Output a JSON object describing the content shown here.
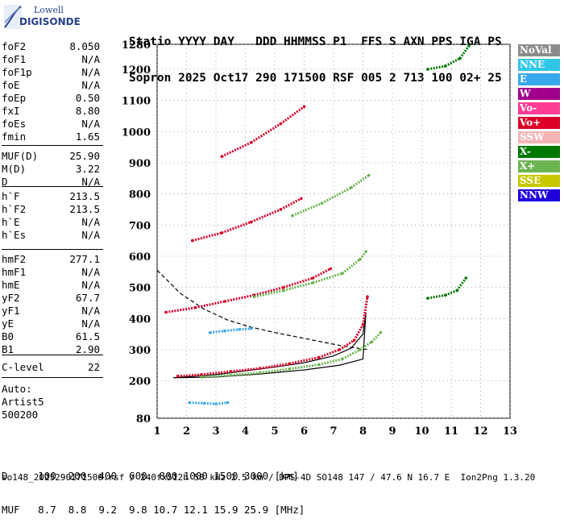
{
  "logo": {
    "top": "Lowell",
    "bottom": "DIGISONDE"
  },
  "header": {
    "line1": "Statio YYYY DAY   DDD HHMMSS P1  FFS S AXN PPS IGA PS",
    "line2": "Sopron 2025 Oct17 290 171500 RSF 005 2 713 100 02+ 25"
  },
  "params": [
    {
      "name": "foF2",
      "value": "8.050"
    },
    {
      "name": "foF1",
      "value": "N/A"
    },
    {
      "name": "foF1p",
      "value": "N/A"
    },
    {
      "name": "foE",
      "value": "N/A"
    },
    {
      "name": "foEp",
      "value": "0.50"
    },
    {
      "name": "fxI",
      "value": "8.80"
    },
    {
      "name": "foEs",
      "value": "N/A"
    },
    {
      "name": "fmin",
      "value": "1.65"
    },
    {
      "name": "MUF(D)",
      "value": "25.90"
    },
    {
      "name": "M(D)",
      "value": "3.22"
    },
    {
      "name": "D",
      "value": "N/A"
    },
    {
      "name": "h`F",
      "value": "213.5"
    },
    {
      "name": "h`F2",
      "value": "213.5"
    },
    {
      "name": "h`E",
      "value": "N/A"
    },
    {
      "name": "h`Es",
      "value": "N/A"
    },
    {
      "name": "hmF2",
      "value": "277.1"
    },
    {
      "name": "hmF1",
      "value": "N/A"
    },
    {
      "name": "hmE",
      "value": "N/A"
    },
    {
      "name": "yF2",
      "value": "67.7"
    },
    {
      "name": "yF1",
      "value": "N/A"
    },
    {
      "name": "yE",
      "value": "N/A"
    },
    {
      "name": "B0",
      "value": "61.5"
    },
    {
      "name": "B1",
      "value": "2.90"
    },
    {
      "name": "C-level",
      "value": "22"
    }
  ],
  "auto": {
    "label": "Auto:",
    "artist": "Artist5",
    "code": "500200"
  },
  "legend": [
    {
      "label": "NoVal",
      "color": "#8c8c8c"
    },
    {
      "label": "NNE",
      "color": "#2fc7e8"
    },
    {
      "label": "E",
      "color": "#38a8ec"
    },
    {
      "label": "W",
      "color": "#a0008c"
    },
    {
      "label": "Vo-",
      "color": "#ff3c96"
    },
    {
      "label": "Vo+",
      "color": "#dc0028"
    },
    {
      "label": "SSW",
      "color": "#f5b4b4"
    },
    {
      "label": "X-",
      "color": "#007800"
    },
    {
      "label": "X+",
      "color": "#6cb450"
    },
    {
      "label": "SSE",
      "color": "#c8c800"
    },
    {
      "label": "NNW",
      "color": "#1e00dc"
    }
  ],
  "footer": {
    "line1": "D     100  200  400  600  800 1000 1500 3000 [km]",
    "line2": "MUF   8.7  8.8  9.2  9.8 10.7 12.1 15.9 25.9 [MHz]",
    "line3": "so148_2025290171500.rsf / 240fx512h 50 kHz 2.5 km / DPS-4D SO148 147 / 47.6 N 16.7 E  Ion2Png 1.3.20"
  },
  "chart_data": {
    "type": "scatter",
    "title": "",
    "xlabel": "",
    "ylabel": "",
    "xlim": [
      1,
      13
    ],
    "ylim": [
      80,
      1280
    ],
    "xticks": [
      1,
      2,
      3,
      4,
      5,
      6,
      7,
      8,
      9,
      10,
      11,
      12,
      13
    ],
    "yticks": [
      80,
      200,
      300,
      400,
      500,
      600,
      700,
      800,
      900,
      1000,
      1100,
      1200,
      1280
    ],
    "series": [
      {
        "color": "#dc0028",
        "x": [
          1.7,
          2.5,
          3.5,
          4.5,
          5.5,
          6.5,
          7.2,
          7.7,
          8.0,
          8.15
        ],
        "y": [
          215,
          220,
          230,
          240,
          255,
          275,
          300,
          330,
          380,
          470
        ]
      },
      {
        "color": "#6cb450",
        "x": [
          2.5,
          3.5,
          4.5,
          5.5,
          6.5,
          7.3,
          7.9,
          8.3,
          8.6
        ],
        "y": [
          212,
          218,
          226,
          238,
          252,
          270,
          300,
          325,
          355
        ]
      },
      {
        "color": "#dc0028",
        "x": [
          1.3,
          2.3,
          3.3,
          4.3,
          5.3,
          6.3,
          6.9
        ],
        "y": [
          420,
          435,
          455,
          475,
          500,
          530,
          560
        ]
      },
      {
        "color": "#6cb450",
        "x": [
          4.3,
          5.3,
          6.3,
          7.3,
          7.9,
          8.1
        ],
        "y": [
          470,
          490,
          515,
          545,
          590,
          615
        ]
      },
      {
        "color": "#dc0028",
        "x": [
          2.2,
          3.2,
          4.2,
          5.2,
          5.9
        ],
        "y": [
          650,
          675,
          710,
          750,
          785
        ]
      },
      {
        "color": "#6cb450",
        "x": [
          5.6,
          6.6,
          7.6,
          8.2
        ],
        "y": [
          730,
          770,
          820,
          860
        ]
      },
      {
        "color": "#dc0028",
        "x": [
          3.2,
          4.2,
          5.2,
          6.0
        ],
        "y": [
          920,
          965,
          1025,
          1080
        ]
      },
      {
        "color": "#007800",
        "x": [
          10.2,
          10.8,
          11.2,
          11.5
        ],
        "y": [
          465,
          475,
          490,
          530
        ]
      },
      {
        "color": "#007800",
        "x": [
          10.2,
          10.8,
          11.3,
          11.6
        ],
        "y": [
          1200,
          1210,
          1235,
          1275
        ]
      },
      {
        "color": "#38a8ec",
        "x": [
          2.1,
          2.6,
          3.0,
          3.4
        ],
        "y": [
          130,
          128,
          126,
          130
        ]
      },
      {
        "color": "#38a8ec",
        "x": [
          2.8,
          3.3,
          3.8,
          4.2
        ],
        "y": [
          355,
          360,
          365,
          368
        ]
      }
    ],
    "curves": [
      {
        "style": "solid",
        "x": [
          1.55,
          3,
          4,
          5,
          6,
          7,
          7.6,
          8.0,
          8.1,
          8.0,
          7.2,
          6.0,
          4.5,
          3.0,
          1.55
        ],
        "y": [
          210,
          220,
          232,
          244,
          258,
          280,
          305,
          350,
          420,
          270,
          250,
          235,
          222,
          212,
          210
        ]
      },
      {
        "style": "dashed",
        "x": [
          1.0,
          1.8,
          2.6,
          3.4,
          4.2,
          5.0,
          5.8,
          6.6,
          7.4,
          8.2
        ],
        "y": [
          555,
          480,
          430,
          395,
          372,
          355,
          340,
          325,
          310,
          300
        ]
      }
    ]
  }
}
